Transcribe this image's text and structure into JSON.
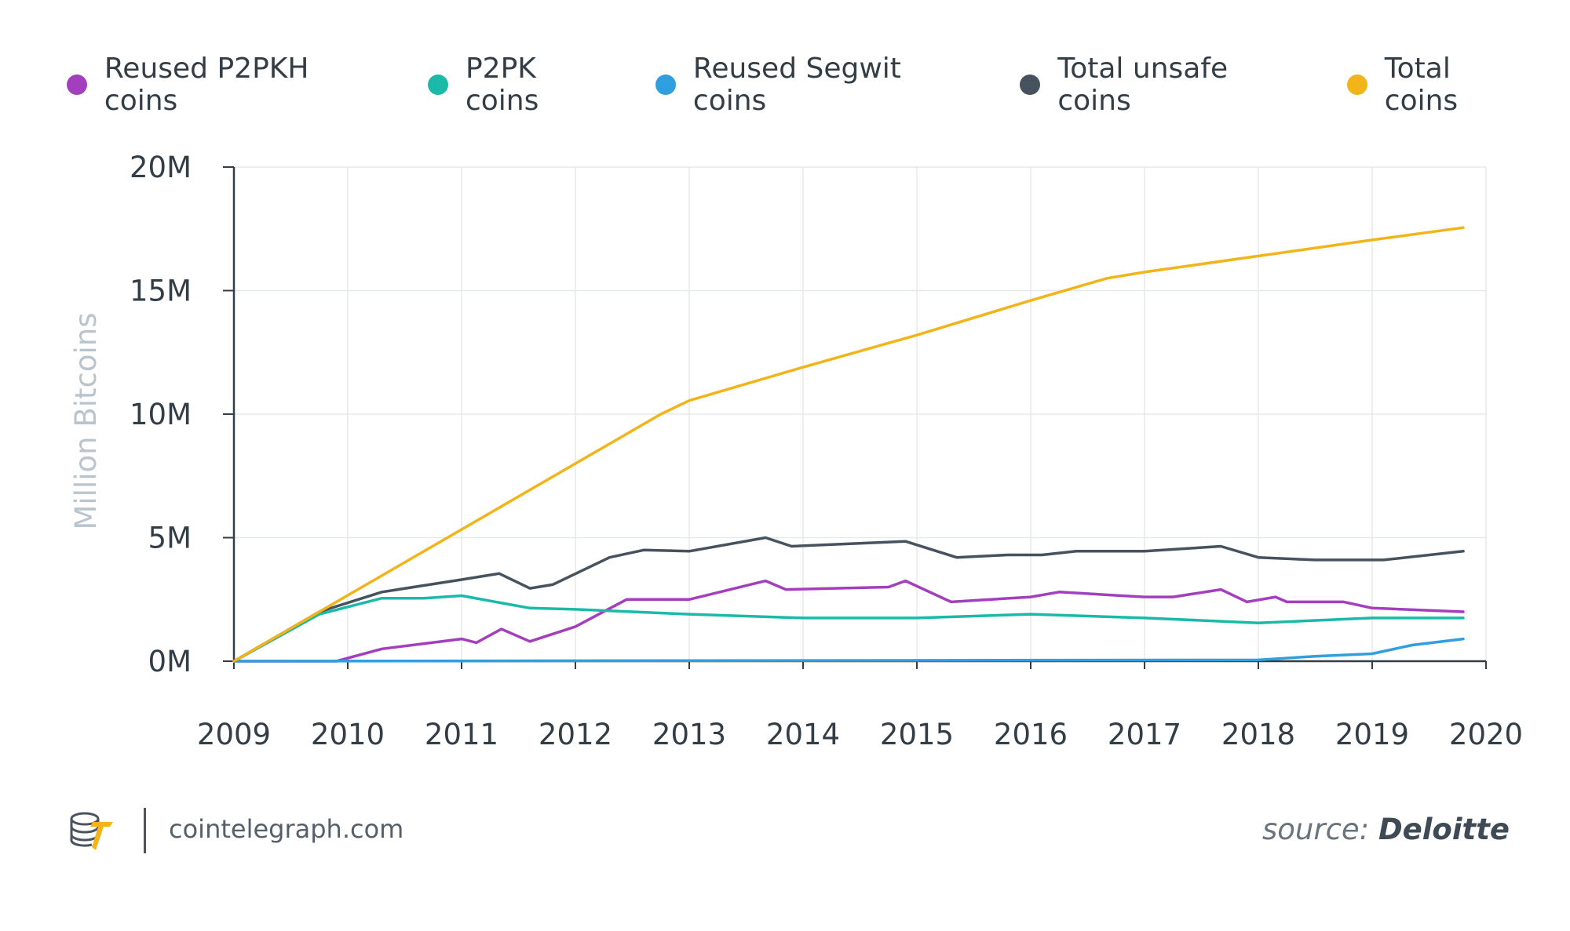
{
  "chart_data": {
    "type": "line",
    "title": "",
    "xlabel": "",
    "ylabel": "Million Bitcoins",
    "xlim": [
      2009,
      2020
    ],
    "ylim": [
      0,
      20
    ],
    "x_ticks": [
      "2009",
      "2010",
      "2011",
      "2012",
      "2013",
      "2014",
      "2015",
      "2016",
      "2017",
      "2018",
      "2019",
      "2020"
    ],
    "y_ticks": [
      {
        "value": 0,
        "label": "0M"
      },
      {
        "value": 5,
        "label": "5M"
      },
      {
        "value": 10,
        "label": "10M"
      },
      {
        "value": 15,
        "label": "15M"
      },
      {
        "value": 20,
        "label": "20M"
      }
    ],
    "grid": true,
    "legend": "top",
    "series": [
      {
        "name": "Reused P2PKH coins",
        "color": "#a33fbe",
        "points": [
          [
            2009,
            0
          ],
          [
            2009.9,
            0
          ],
          [
            2010.3,
            0.5
          ],
          [
            2011,
            0.9
          ],
          [
            2011.13,
            0.75
          ],
          [
            2011.35,
            1.3
          ],
          [
            2011.6,
            0.8
          ],
          [
            2012,
            1.4
          ],
          [
            2012.45,
            2.5
          ],
          [
            2013,
            2.5
          ],
          [
            2013.67,
            3.25
          ],
          [
            2013.85,
            2.9
          ],
          [
            2014.75,
            3.0
          ],
          [
            2014.9,
            3.25
          ],
          [
            2015.3,
            2.4
          ],
          [
            2016,
            2.6
          ],
          [
            2016.25,
            2.8
          ],
          [
            2016.8,
            2.65
          ],
          [
            2017,
            2.6
          ],
          [
            2017.25,
            2.6
          ],
          [
            2017.67,
            2.9
          ],
          [
            2017.9,
            2.4
          ],
          [
            2018.15,
            2.6
          ],
          [
            2018.25,
            2.4
          ],
          [
            2018.75,
            2.4
          ],
          [
            2019,
            2.15
          ],
          [
            2019.8,
            2.0
          ]
        ]
      },
      {
        "name": "P2PK coins",
        "color": "#1ab9a8",
        "points": [
          [
            2009,
            0
          ],
          [
            2009.75,
            1.9
          ],
          [
            2010.3,
            2.55
          ],
          [
            2010.67,
            2.55
          ],
          [
            2011,
            2.65
          ],
          [
            2011.6,
            2.15
          ],
          [
            2012,
            2.1
          ],
          [
            2013,
            1.9
          ],
          [
            2014,
            1.75
          ],
          [
            2015,
            1.75
          ],
          [
            2016,
            1.9
          ],
          [
            2017,
            1.75
          ],
          [
            2018,
            1.55
          ],
          [
            2019,
            1.75
          ],
          [
            2019.8,
            1.75
          ]
        ]
      },
      {
        "name": "Reused Segwit coins",
        "color": "#2f9fe0",
        "points": [
          [
            2009,
            0
          ],
          [
            2018,
            0.05
          ],
          [
            2018.5,
            0.2
          ],
          [
            2019,
            0.3
          ],
          [
            2019.35,
            0.65
          ],
          [
            2019.8,
            0.9
          ]
        ]
      },
      {
        "name": "Total unsafe coins",
        "color": "#46525d",
        "points": [
          [
            2009,
            0
          ],
          [
            2009.75,
            2.0
          ],
          [
            2010.3,
            2.8
          ],
          [
            2011,
            3.3
          ],
          [
            2011.33,
            3.55
          ],
          [
            2011.6,
            2.95
          ],
          [
            2011.8,
            3.1
          ],
          [
            2012.3,
            4.2
          ],
          [
            2012.6,
            4.5
          ],
          [
            2013,
            4.45
          ],
          [
            2013.67,
            5.0
          ],
          [
            2013.9,
            4.65
          ],
          [
            2014.9,
            4.85
          ],
          [
            2015.35,
            4.2
          ],
          [
            2015.8,
            4.3
          ],
          [
            2016.1,
            4.3
          ],
          [
            2016.4,
            4.45
          ],
          [
            2017,
            4.45
          ],
          [
            2017.67,
            4.65
          ],
          [
            2018,
            4.2
          ],
          [
            2018.5,
            4.1
          ],
          [
            2019.1,
            4.1
          ],
          [
            2019.8,
            4.45
          ]
        ]
      },
      {
        "name": "Total coins",
        "color": "#f2b418",
        "points": [
          [
            2009,
            0
          ],
          [
            2012.75,
            10.0
          ],
          [
            2013,
            10.55
          ],
          [
            2014,
            11.9
          ],
          [
            2015,
            13.2
          ],
          [
            2016,
            14.6
          ],
          [
            2016.67,
            15.5
          ],
          [
            2017,
            15.75
          ],
          [
            2018,
            16.4
          ],
          [
            2019,
            17.05
          ],
          [
            2019.8,
            17.55
          ]
        ]
      }
    ]
  },
  "footer": {
    "site": "cointelegraph.com",
    "source_prefix": "source:",
    "source_name": "Deloitte",
    "logo_icon": "cointelegraph-logo-icon"
  }
}
